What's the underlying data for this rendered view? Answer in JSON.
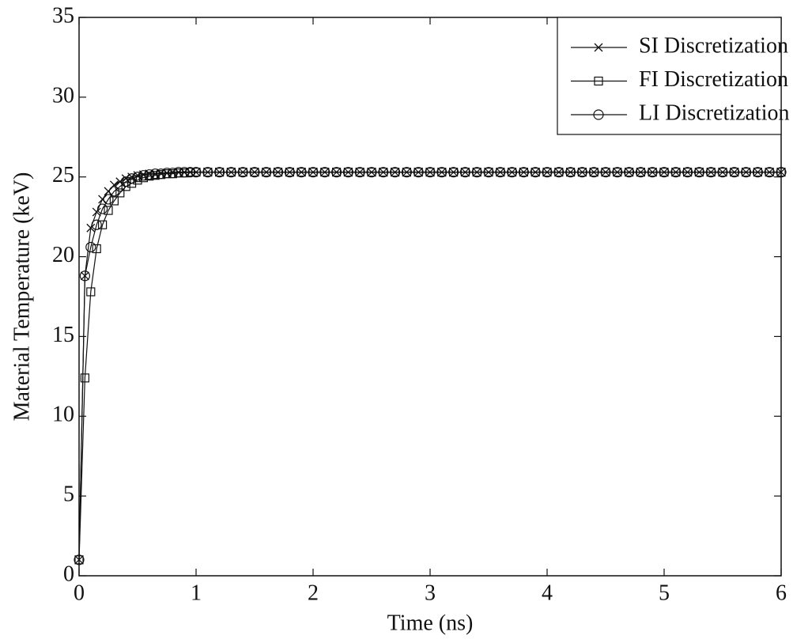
{
  "chart_data": {
    "type": "line",
    "xlabel": "Time (ns)",
    "ylabel": "Material Temperature (keV)",
    "x": [
      0,
      0.05,
      0.1,
      0.15,
      0.2,
      0.25,
      0.3,
      0.35,
      0.4,
      0.45,
      0.5,
      0.55,
      0.6,
      0.65,
      0.7,
      0.75,
      0.8,
      0.85,
      0.9,
      0.95,
      1.0,
      1.1,
      1.2,
      1.3,
      1.4,
      1.5,
      1.6,
      1.7,
      1.8,
      1.9,
      2.0,
      2.1,
      2.2,
      2.3,
      2.4,
      2.5,
      2.6,
      2.7,
      2.8,
      2.9,
      3.0,
      3.1,
      3.2,
      3.3,
      3.4,
      3.5,
      3.6,
      3.7,
      3.8,
      3.9,
      4.0,
      4.1,
      4.2,
      4.3,
      4.4,
      4.5,
      4.6,
      4.7,
      4.8,
      4.9,
      5.0,
      5.1,
      5.2,
      5.3,
      5.4,
      5.5,
      5.6,
      5.7,
      5.8,
      5.9,
      6.0
    ],
    "series": [
      {
        "name": "SI Discretization",
        "color": "#111111",
        "marker": "x",
        "values": [
          1,
          18.8,
          21.8,
          22.8,
          23.6,
          24.1,
          24.5,
          24.7,
          24.9,
          25.0,
          25.1,
          25.15,
          25.2,
          25.2,
          25.25,
          25.25,
          25.3,
          25.3,
          25.3,
          25.3,
          25.3,
          25.3,
          25.3,
          25.3,
          25.3,
          25.3,
          25.3,
          25.3,
          25.3,
          25.3,
          25.3,
          25.3,
          25.3,
          25.3,
          25.3,
          25.3,
          25.3,
          25.3,
          25.3,
          25.3,
          25.3,
          25.3,
          25.3,
          25.3,
          25.3,
          25.3,
          25.3,
          25.3,
          25.3,
          25.3,
          25.3,
          25.3,
          25.3,
          25.3,
          25.3,
          25.3,
          25.3,
          25.3,
          25.3,
          25.3,
          25.3,
          25.3,
          25.3,
          25.3,
          25.3,
          25.3,
          25.3,
          25.3,
          25.3,
          25.3,
          25.3
        ]
      },
      {
        "name": "FI Discretization",
        "color": "#111111",
        "marker": "square",
        "values": [
          1,
          12.4,
          17.8,
          20.5,
          22.0,
          22.9,
          23.5,
          24.0,
          24.4,
          24.6,
          24.8,
          24.95,
          25.05,
          25.1,
          25.15,
          25.2,
          25.2,
          25.25,
          25.25,
          25.3,
          25.3,
          25.3,
          25.3,
          25.3,
          25.3,
          25.3,
          25.3,
          25.3,
          25.3,
          25.3,
          25.3,
          25.3,
          25.3,
          25.3,
          25.3,
          25.3,
          25.3,
          25.3,
          25.3,
          25.3,
          25.3,
          25.3,
          25.3,
          25.3,
          25.3,
          25.3,
          25.3,
          25.3,
          25.3,
          25.3,
          25.3,
          25.3,
          25.3,
          25.3,
          25.3,
          25.3,
          25.3,
          25.3,
          25.3,
          25.3,
          25.3,
          25.3,
          25.3,
          25.3,
          25.3,
          25.3,
          25.3,
          25.3,
          25.3,
          25.3,
          25.3
        ]
      },
      {
        "name": "LI Discretization",
        "color": "#111111",
        "marker": "circle",
        "values": [
          1,
          18.8,
          20.6,
          22.0,
          23.0,
          23.6,
          24.1,
          24.4,
          24.7,
          24.9,
          25.0,
          25.1,
          25.15,
          25.2,
          25.2,
          25.25,
          25.25,
          25.3,
          25.3,
          25.3,
          25.3,
          25.3,
          25.3,
          25.3,
          25.3,
          25.3,
          25.3,
          25.3,
          25.3,
          25.3,
          25.3,
          25.3,
          25.3,
          25.3,
          25.3,
          25.3,
          25.3,
          25.3,
          25.3,
          25.3,
          25.3,
          25.3,
          25.3,
          25.3,
          25.3,
          25.3,
          25.3,
          25.3,
          25.3,
          25.3,
          25.3,
          25.3,
          25.3,
          25.3,
          25.3,
          25.3,
          25.3,
          25.3,
          25.3,
          25.3,
          25.3,
          25.3,
          25.3,
          25.3,
          25.3,
          25.3,
          25.3,
          25.3,
          25.3,
          25.3,
          25.3
        ]
      }
    ],
    "xlim": [
      0,
      6
    ],
    "ylim": [
      0,
      35
    ],
    "xticks": [
      0,
      1,
      2,
      3,
      4,
      5,
      6
    ],
    "yticks": [
      0,
      5,
      10,
      15,
      20,
      25,
      30,
      35
    ],
    "grid": false,
    "legend": "upper right"
  }
}
